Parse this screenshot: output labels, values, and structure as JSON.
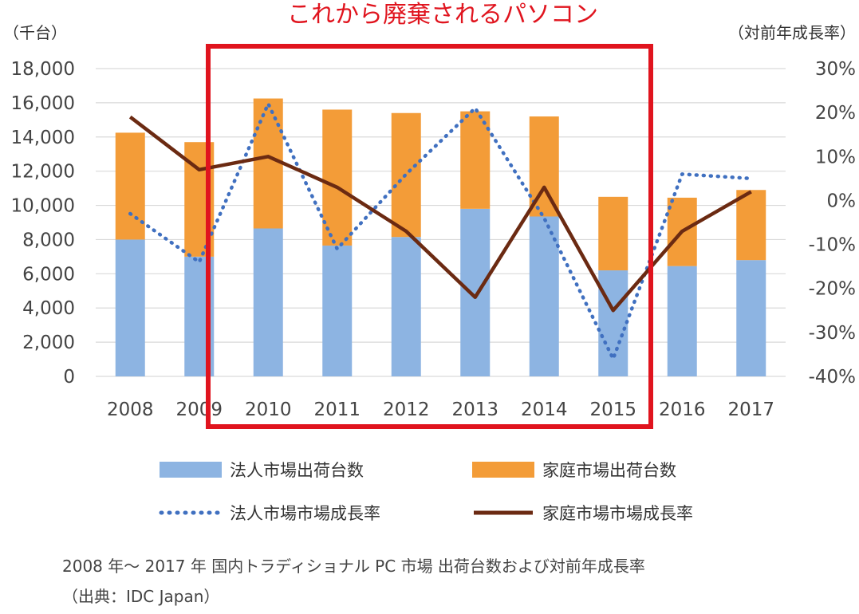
{
  "chart_data": {
    "type": "bar",
    "stacked": true,
    "title": "これから廃棄されるパソコン",
    "y_left_label": "（千台）",
    "y_right_label": "（対前年成長率）",
    "categories": [
      "2008",
      "2009",
      "2010",
      "2011",
      "2012",
      "2013",
      "2014",
      "2015",
      "2016",
      "2017"
    ],
    "ylim_left": [
      0,
      18000
    ],
    "yticks_left": [
      "0",
      "2,000",
      "4,000",
      "6,000",
      "8,000",
      "10,000",
      "12,000",
      "14,000",
      "16,000",
      "18,000"
    ],
    "ylim_right": [
      -40,
      30
    ],
    "yticks_right": [
      "-40%",
      "-30%",
      "-20%",
      "-10%",
      "0%",
      "10%",
      "20%",
      "30%"
    ],
    "series": [
      {
        "name": "法人市場出荷台数",
        "kind": "bar",
        "color": "#8DB4E2",
        "values": [
          8000,
          7000,
          8650,
          7650,
          8150,
          9800,
          9350,
          6200,
          6450,
          6800
        ]
      },
      {
        "name": "家庭市場出荷台数",
        "kind": "bar",
        "color": "#F39C38",
        "values": [
          6250,
          6700,
          7600,
          7950,
          7250,
          5700,
          5850,
          4300,
          4000,
          4100
        ]
      },
      {
        "name": "法人市場市場成長率",
        "kind": "line",
        "style": "dotted",
        "color": "#4070C0",
        "axis": "right",
        "values": [
          -3,
          -14,
          22,
          -11,
          6,
          21,
          -4,
          -36,
          6,
          5
        ]
      },
      {
        "name": "家庭市場市場成長率",
        "kind": "line",
        "style": "solid",
        "color": "#6B2A12",
        "axis": "right",
        "values": [
          19,
          7,
          10,
          3,
          -7,
          -22,
          3,
          -25,
          -7,
          2
        ]
      }
    ],
    "highlight": {
      "from": "2010",
      "to": "2015",
      "color": "#E0141E"
    },
    "grid": true
  },
  "caption": {
    "line1": "2008 年〜 2017 年 国内トラディショナル PC 市場 出荷台数および対前年成長率",
    "line2": "（出典：IDC Japan）"
  }
}
